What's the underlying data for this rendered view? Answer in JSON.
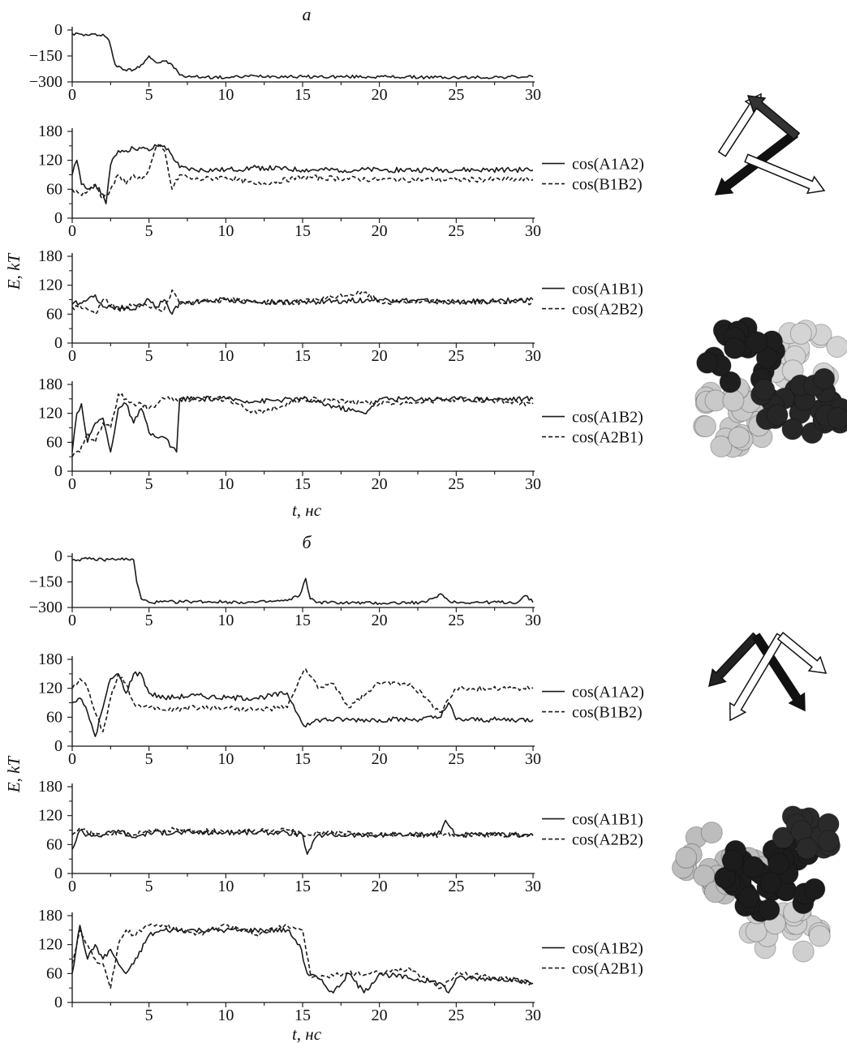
{
  "panels": [
    {
      "label": "а",
      "xlabel": "t, нс",
      "ylabel": "E, kT"
    },
    {
      "label": "б",
      "xlabel": "t, нс",
      "ylabel": "E, kT"
    }
  ],
  "chart_data": [
    {
      "id": "a-energy",
      "type": "line",
      "panel": "а",
      "xlim": [
        0,
        30
      ],
      "ylim": [
        -300,
        0
      ],
      "xticks": [
        "0",
        "5",
        "10",
        "15",
        "20",
        "25",
        "30"
      ],
      "yticks": [
        "0",
        "−150",
        "−300"
      ],
      "series": [
        {
          "style": "solid",
          "x": [
            0,
            1,
            2,
            2.4,
            2.8,
            3.3,
            4,
            4.5,
            5,
            5.5,
            6,
            6.5,
            7,
            7.5,
            8,
            10,
            12,
            15,
            20,
            25,
            30
          ],
          "y": [
            -20,
            -30,
            -25,
            -60,
            -200,
            -230,
            -230,
            -200,
            -150,
            -190,
            -180,
            -200,
            -260,
            -270,
            -270,
            -275,
            -265,
            -270,
            -270,
            -275,
            -270
          ]
        }
      ]
    },
    {
      "id": "a-cos-a1a2-b1b2",
      "type": "line",
      "panel": "а",
      "xlim": [
        0,
        30
      ],
      "ylim": [
        0,
        180
      ],
      "xticks": [
        "0",
        "5",
        "10",
        "15",
        "20",
        "25",
        "30"
      ],
      "yticks": [
        "0",
        "60",
        "120",
        "180"
      ],
      "series": [
        {
          "name": "cos(A1A2)",
          "style": "solid",
          "x": [
            0,
            0.3,
            0.6,
            1,
            1.5,
            2,
            2.2,
            2.5,
            3,
            3.5,
            4,
            4.5,
            5,
            5.5,
            6,
            6.5,
            7,
            8,
            10,
            12,
            15,
            20,
            25,
            30
          ],
          "y": [
            90,
            120,
            70,
            60,
            70,
            50,
            30,
            110,
            140,
            140,
            145,
            145,
            140,
            150,
            150,
            130,
            105,
            100,
            100,
            105,
            100,
            100,
            100,
            100
          ]
        },
        {
          "name": "cos(B1B2)",
          "style": "dashed",
          "x": [
            0,
            0.5,
            1,
            1.5,
            2,
            2.5,
            3,
            3.5,
            4,
            4.5,
            5,
            5.5,
            6,
            6.5,
            7,
            8,
            10,
            12,
            15,
            20,
            25,
            30
          ],
          "y": [
            60,
            50,
            55,
            70,
            40,
            60,
            90,
            70,
            90,
            80,
            100,
            150,
            140,
            60,
            90,
            80,
            85,
            70,
            85,
            80,
            80,
            80
          ]
        }
      ]
    },
    {
      "id": "a-cos-a1b1-a2b2",
      "type": "line",
      "panel": "а",
      "xlim": [
        0,
        30
      ],
      "ylim": [
        0,
        180
      ],
      "xticks": [
        "0",
        "5",
        "10",
        "15",
        "20",
        "25",
        "30"
      ],
      "yticks": [
        "0",
        "60",
        "120",
        "180"
      ],
      "series": [
        {
          "name": "cos(A1B1)",
          "style": "solid",
          "x": [
            0,
            1,
            1.5,
            2,
            3,
            4,
            5,
            5.5,
            6,
            6.5,
            7,
            8,
            10,
            12,
            15,
            20,
            25,
            30
          ],
          "y": [
            80,
            90,
            100,
            75,
            75,
            70,
            90,
            75,
            90,
            60,
            85,
            85,
            90,
            85,
            85,
            90,
            85,
            90
          ]
        },
        {
          "name": "cos(A2B2)",
          "style": "dashed",
          "x": [
            0,
            1,
            1.5,
            2,
            3,
            4,
            5,
            6,
            6.5,
            7,
            8,
            10,
            12,
            15,
            19,
            20,
            25,
            30
          ],
          "y": [
            75,
            70,
            60,
            90,
            70,
            80,
            75,
            70,
            110,
            80,
            85,
            90,
            85,
            85,
            105,
            85,
            85,
            85
          ]
        }
      ]
    },
    {
      "id": "a-cos-a1b2-a2b1",
      "type": "line",
      "panel": "а",
      "xlim": [
        0,
        30
      ],
      "ylim": [
        0,
        180
      ],
      "xticks": [
        "0",
        "5",
        "10",
        "15",
        "20",
        "25",
        "30"
      ],
      "yticks": [
        "0",
        "60",
        "120",
        "180"
      ],
      "series": [
        {
          "name": "cos(A1B2)",
          "style": "solid",
          "x": [
            0,
            0.3,
            0.6,
            1,
            1.5,
            2,
            2.5,
            3,
            3.5,
            4,
            4.5,
            5,
            5.5,
            6,
            6.5,
            6.8,
            7,
            8,
            10,
            12,
            15,
            19,
            20,
            25,
            30
          ],
          "y": [
            40,
            120,
            140,
            60,
            100,
            110,
            40,
            130,
            140,
            100,
            130,
            80,
            70,
            70,
            50,
            40,
            150,
            150,
            150,
            145,
            150,
            120,
            150,
            150,
            150
          ]
        },
        {
          "name": "cos(A2B1)",
          "style": "dashed",
          "x": [
            0,
            0.5,
            1,
            1.5,
            2,
            2.5,
            3,
            3.5,
            4,
            4.5,
            5,
            5.5,
            6,
            7,
            8,
            10,
            12,
            15,
            20,
            25,
            30
          ],
          "y": [
            30,
            40,
            80,
            60,
            100,
            90,
            160,
            150,
            140,
            140,
            130,
            140,
            150,
            150,
            150,
            150,
            120,
            150,
            140,
            150,
            140
          ]
        }
      ]
    },
    {
      "id": "b-energy",
      "type": "line",
      "panel": "б",
      "xlim": [
        0,
        30
      ],
      "ylim": [
        -300,
        0
      ],
      "xticks": [
        "0",
        "5",
        "10",
        "15",
        "20",
        "25",
        "30"
      ],
      "yticks": [
        "0",
        "−150",
        "−300"
      ],
      "series": [
        {
          "style": "solid",
          "x": [
            0,
            1,
            2,
            3,
            4,
            4.2,
            4.5,
            5,
            8,
            12,
            14,
            14.8,
            15.2,
            15.5,
            16,
            20,
            23,
            24,
            24.5,
            25,
            29,
            29.5,
            30
          ],
          "y": [
            -20,
            -15,
            -20,
            -15,
            -20,
            -150,
            -250,
            -270,
            -265,
            -270,
            -260,
            -230,
            -130,
            -250,
            -270,
            -275,
            -270,
            -220,
            -260,
            -270,
            -270,
            -230,
            -270
          ]
        }
      ]
    },
    {
      "id": "b-cos-a1a2-b1b2",
      "type": "line",
      "panel": "б",
      "xlim": [
        0,
        30
      ],
      "ylim": [
        0,
        180
      ],
      "xticks": [
        "0",
        "5",
        "10",
        "15",
        "20",
        "25",
        "30"
      ],
      "yticks": [
        "0",
        "60",
        "120",
        "180"
      ],
      "series": [
        {
          "name": "cos(A1A2)",
          "style": "solid",
          "x": [
            0,
            0.5,
            1,
            1.5,
            2,
            2.5,
            3,
            3.5,
            4,
            4.5,
            5,
            6,
            8,
            10,
            12,
            14,
            14.8,
            15.2,
            16,
            18,
            20,
            22,
            24,
            24.5,
            25,
            28,
            30
          ],
          "y": [
            90,
            100,
            70,
            20,
            80,
            140,
            150,
            110,
            150,
            150,
            110,
            100,
            105,
            100,
            100,
            110,
            60,
            40,
            55,
            55,
            55,
            55,
            60,
            90,
            55,
            55,
            55
          ]
        },
        {
          "name": "cos(B1B2)",
          "style": "dashed",
          "x": [
            0,
            0.5,
            1,
            1.5,
            2,
            2.5,
            3,
            3.5,
            4,
            4.5,
            5,
            6,
            8,
            10,
            12,
            14,
            14.8,
            15.2,
            16,
            17,
            18,
            20,
            22,
            24,
            25,
            28,
            30
          ],
          "y": [
            120,
            140,
            120,
            70,
            30,
            100,
            150,
            130,
            90,
            80,
            80,
            75,
            80,
            80,
            75,
            80,
            140,
            160,
            120,
            130,
            80,
            130,
            130,
            70,
            120,
            120,
            120
          ]
        }
      ]
    },
    {
      "id": "b-cos-a1b1-a2b2",
      "type": "line",
      "panel": "б",
      "xlim": [
        0,
        30
      ],
      "ylim": [
        0,
        180
      ],
      "xticks": [
        "0",
        "5",
        "10",
        "15",
        "20",
        "25",
        "30"
      ],
      "yticks": [
        "0",
        "60",
        "120",
        "180"
      ],
      "series": [
        {
          "name": "cos(A1B1)",
          "style": "solid",
          "x": [
            0,
            0.5,
            1,
            2,
            3,
            4,
            5,
            8,
            10,
            14,
            15,
            15.3,
            16,
            20,
            23,
            24,
            24.3,
            25,
            30
          ],
          "y": [
            50,
            90,
            80,
            80,
            90,
            75,
            85,
            85,
            85,
            85,
            80,
            40,
            80,
            80,
            80,
            85,
            110,
            80,
            80
          ]
        },
        {
          "name": "cos(A2B2)",
          "style": "dashed",
          "x": [
            0,
            0.5,
            1,
            2,
            3,
            4,
            5,
            8,
            10,
            14,
            15,
            16,
            20,
            25,
            30
          ],
          "y": [
            80,
            95,
            85,
            80,
            85,
            80,
            90,
            90,
            85,
            90,
            80,
            85,
            80,
            80,
            80
          ]
        }
      ]
    },
    {
      "id": "b-cos-a1b2-a2b1",
      "type": "line",
      "panel": "б",
      "xlim": [
        0,
        30
      ],
      "ylim": [
        0,
        180
      ],
      "xticks": [
        "5",
        "10",
        "15",
        "20",
        "25",
        "30"
      ],
      "yticks": [
        "0",
        "60",
        "120",
        "180"
      ],
      "series": [
        {
          "name": "cos(A1B2)",
          "style": "solid",
          "x": [
            0,
            0.5,
            1,
            1.5,
            2,
            2.5,
            3,
            3.5,
            4,
            5,
            6,
            8,
            10,
            12,
            14,
            14.8,
            15.3,
            16,
            17,
            18,
            19,
            20,
            22,
            24,
            24.5,
            25,
            28,
            30
          ],
          "y": [
            60,
            160,
            90,
            120,
            90,
            110,
            80,
            60,
            80,
            140,
            150,
            150,
            150,
            150,
            150,
            120,
            60,
            50,
            20,
            60,
            20,
            60,
            50,
            40,
            20,
            50,
            50,
            40
          ]
        },
        {
          "name": "cos(A2B1)",
          "style": "dashed",
          "x": [
            0,
            0.5,
            1,
            1.5,
            2,
            2.5,
            3,
            3.5,
            4,
            5,
            6,
            8,
            10,
            12,
            14,
            15,
            15.5,
            16,
            18,
            20,
            22,
            24,
            25,
            28,
            30
          ],
          "y": [
            80,
            150,
            120,
            90,
            80,
            30,
            120,
            150,
            140,
            160,
            160,
            140,
            160,
            140,
            160,
            150,
            60,
            50,
            60,
            60,
            70,
            30,
            60,
            50,
            40
          ]
        }
      ]
    }
  ]
}
